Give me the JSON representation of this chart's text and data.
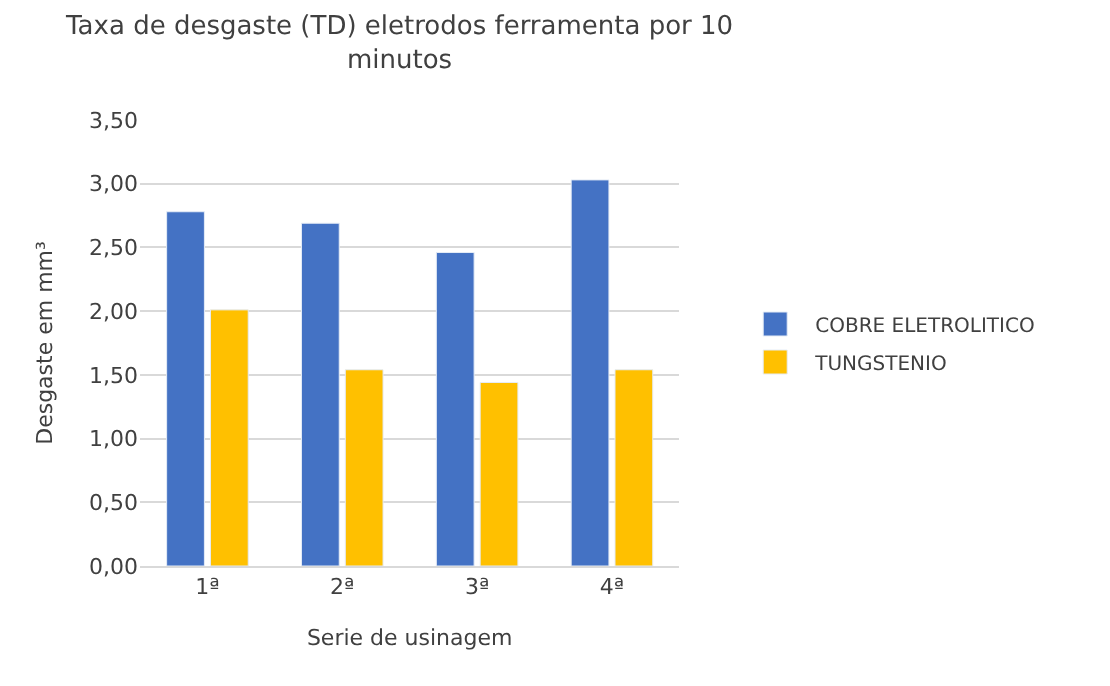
{
  "chart_data": {
    "type": "bar",
    "title": "Taxa de desgaste (TD) eletrodos ferramenta por 10 minutos",
    "categories": [
      "1ª",
      "2ª",
      "3ª",
      "4ª"
    ],
    "series": [
      {
        "name": "COBRE ELETROLITICO",
        "color": "#4472c4",
        "values": [
          2.78,
          2.69,
          2.46,
          3.03
        ]
      },
      {
        "name": "TUNGSTENIO",
        "color": "#ffc000",
        "values": [
          2.01,
          1.54,
          1.44,
          1.54
        ]
      }
    ],
    "xlabel": "Serie de usinagem",
    "ylabel": "Desgaste em mm³",
    "ylim": [
      0,
      3.5
    ],
    "yticks": [
      {
        "value": 0,
        "label": "0,00"
      },
      {
        "value": 0.5,
        "label": "0,50"
      },
      {
        "value": 1,
        "label": "1,00"
      },
      {
        "value": 1.5,
        "label": "1,50"
      },
      {
        "value": 2,
        "label": "2,00"
      },
      {
        "value": 2.5,
        "label": "2,50"
      },
      {
        "value": 3,
        "label": "3,00"
      },
      {
        "value": 3.5,
        "label": "3,50"
      }
    ],
    "grid": "y",
    "legend": "right"
  }
}
